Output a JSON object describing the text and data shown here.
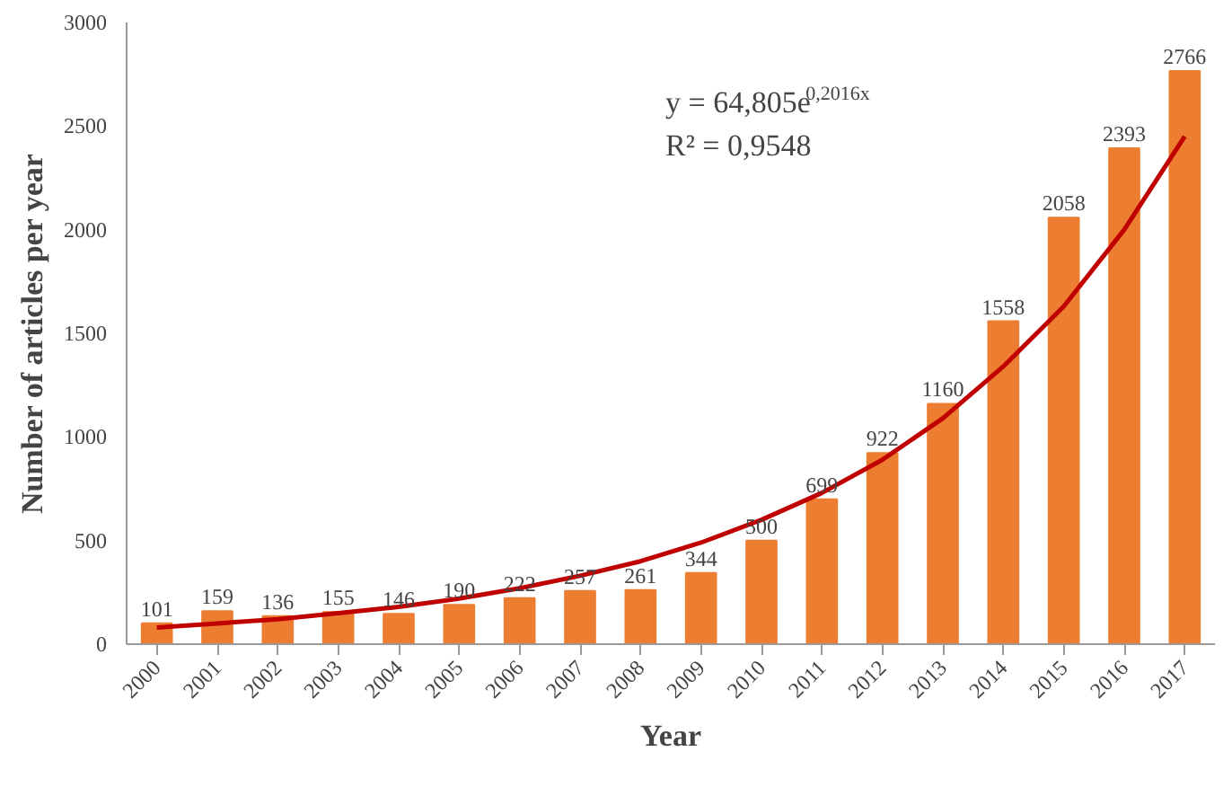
{
  "chart_data": {
    "type": "bar",
    "xlabel": "Year",
    "ylabel": "Number of articles per year",
    "x": [
      2000,
      2001,
      2002,
      2003,
      2004,
      2005,
      2006,
      2007,
      2008,
      2009,
      2010,
      2011,
      2012,
      2013,
      2014,
      2015,
      2016,
      2017
    ],
    "xlim": [
      1999.5,
      2017.5
    ],
    "xticks": [
      2000,
      2001,
      2002,
      2003,
      2004,
      2005,
      2006,
      2007,
      2008,
      2009,
      2010,
      2011,
      2012,
      2013,
      2014,
      2015,
      2016,
      2017
    ],
    "ylim": [
      0,
      3000
    ],
    "yticks": [
      0,
      500,
      1000,
      1500,
      2000,
      2500,
      3000
    ],
    "grid": false,
    "series": [
      {
        "color": "#ed7d31",
        "values": [
          101,
          159,
          136,
          155,
          146,
          190,
          222,
          257,
          261,
          344,
          500,
          699,
          922,
          1160,
          1558,
          2058,
          2393,
          2766
        ],
        "value_labels": [
          "101",
          "159",
          "136",
          "155",
          "146",
          "190",
          "222",
          "257",
          "261",
          "344",
          "500",
          "699",
          "922",
          "1160",
          "1558",
          "2058",
          "2393",
          "2766"
        ]
      },
      {
        "type": "line",
        "color": "#c00000",
        "x": [
          2000,
          2001,
          2002,
          2003,
          2004,
          2005,
          2006,
          2007,
          2008,
          2009,
          2010,
          2011,
          2012,
          2013,
          2014,
          2015,
          2016,
          2017
        ],
        "values": [
          80,
          100,
          120,
          150,
          180,
          220,
          270,
          330,
          400,
          490,
          600,
          730,
          890,
          1090,
          1340,
          1630,
          2000,
          2450
        ]
      }
    ],
    "annotations": [
      "y = 64,805e$^{0,2016x}$",
      "R² = 0,9548"
    ]
  }
}
